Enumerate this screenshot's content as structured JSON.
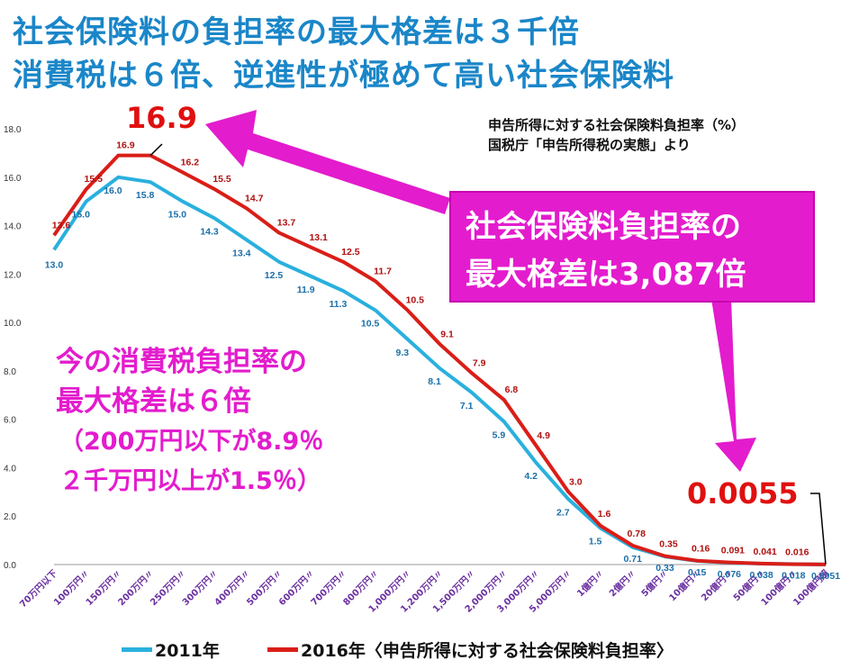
{
  "titles": {
    "line1": "社会保険料の負担率の最大格差は３千倍",
    "line2": "消費税は６倍、逆進性が極めて高い社会保険料"
  },
  "source_note": {
    "line1": "申告所得に対する社会保険料負担率（%）",
    "line2": "国税庁「申告所得税の実態」より"
  },
  "callout": {
    "line1": "社会保険料負担率の",
    "line2": "最大格差は3,087倍"
  },
  "consumption_note": {
    "line1": "今の消費税負担率の",
    "line2": "最大格差は６倍",
    "line3": "（200万円以下が8.9％",
    "line4": "２千万円以上が1.5％）"
  },
  "highlights": {
    "peak": "16.9",
    "min": "0.0055"
  },
  "legend": {
    "series_2011": "2011年",
    "series_2016": "2016年〈申告所得に対する社会保険料負担率〉"
  },
  "colors": {
    "s2011": "#2ab0dd",
    "s2016": "#d91e18",
    "label2011": "#1b6fa8",
    "label2016": "#b01010",
    "pink": "#e31ccd",
    "title": "#1a86c8",
    "ticklabel": "#6a2fa0"
  },
  "chart_data": {
    "type": "line",
    "title": "社会保険料の負担率の最大格差は３千倍",
    "ylabel": "",
    "xlabel": "",
    "ylim": [
      0,
      18
    ],
    "yticks": [
      "0.0",
      "2.0",
      "4.0",
      "6.0",
      "8.0",
      "10.0",
      "12.0",
      "14.0",
      "16.0",
      "18.0"
    ],
    "grid": false,
    "legend_position": "bottom",
    "categories": [
      "70万円以下",
      "100万円〃",
      "150万円〃",
      "200万円〃",
      "250万円〃",
      "300万円〃",
      "400万円〃",
      "500万円〃",
      "600万円〃",
      "700万円〃",
      "800万円〃",
      "1,000万円〃",
      "1,200万円〃",
      "1,500万円〃",
      "2,000万円〃",
      "3,000万円〃",
      "5,000万円〃",
      "1億円〃",
      "2億円〃",
      "5億円〃",
      "10億円〃",
      "20億円〃",
      "50億円〃",
      "100億円〃",
      "100億円超"
    ],
    "series": [
      {
        "name": "2011年",
        "values": [
          13.0,
          15.0,
          16.0,
          15.8,
          15.0,
          14.3,
          13.4,
          12.5,
          11.9,
          11.3,
          10.5,
          9.3,
          8.1,
          7.1,
          5.9,
          4.2,
          2.7,
          1.5,
          0.71,
          0.33,
          0.15,
          0.076,
          0.038,
          0.018,
          0.0051
        ],
        "labels": [
          "13.0",
          "15.0",
          "16.0",
          "15.8",
          "15.0",
          "14.3",
          "13.4",
          "12.5",
          "11.9",
          "11.3",
          "10.5",
          "9.3",
          "8.1",
          "7.1",
          "5.9",
          "4.2",
          "2.7",
          "1.5",
          "0.71",
          "0.33",
          "0.15",
          "0.076",
          "0.038",
          "0.018",
          "0.0051"
        ]
      },
      {
        "name": "2016年",
        "values": [
          13.6,
          15.5,
          16.9,
          16.9,
          16.2,
          15.5,
          14.7,
          13.7,
          13.1,
          12.5,
          11.7,
          10.5,
          9.1,
          7.9,
          6.8,
          4.9,
          3.0,
          1.6,
          0.78,
          0.35,
          0.16,
          0.091,
          0.041,
          0.016,
          0.0055
        ],
        "labels": [
          "13.6",
          "15.5",
          "16.9",
          "",
          "16.2",
          "15.5",
          "14.7",
          "13.7",
          "13.1",
          "12.5",
          "11.7",
          "10.5",
          "9.1",
          "7.9",
          "6.8",
          "4.9",
          "3.0",
          "1.6",
          "0.78",
          "0.35",
          "0.16",
          "0.091",
          "0.041",
          "0.016",
          ""
        ]
      }
    ]
  }
}
